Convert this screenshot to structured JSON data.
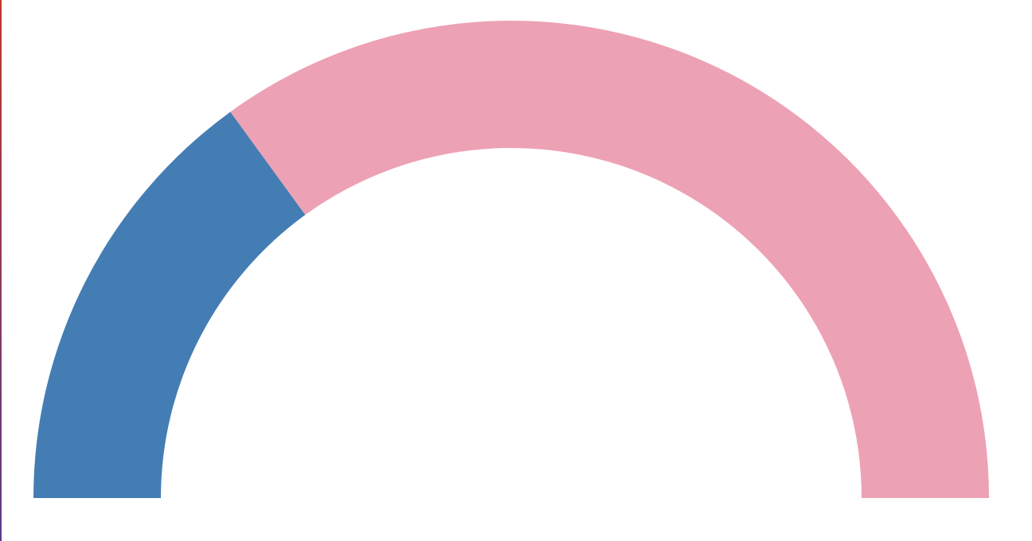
{
  "chart_data": {
    "type": "pie",
    "subtype": "semi-donut",
    "title": "",
    "legend": "none",
    "data_labels": "none",
    "slices": [
      {
        "value": 30,
        "color": "#447db3"
      },
      {
        "value": 70,
        "color": "#eda1b5"
      }
    ]
  },
  "colors": {
    "background": "#ffffff",
    "left_edge_top": "#c0392b",
    "left_edge_bottom": "#5b3a8a"
  }
}
